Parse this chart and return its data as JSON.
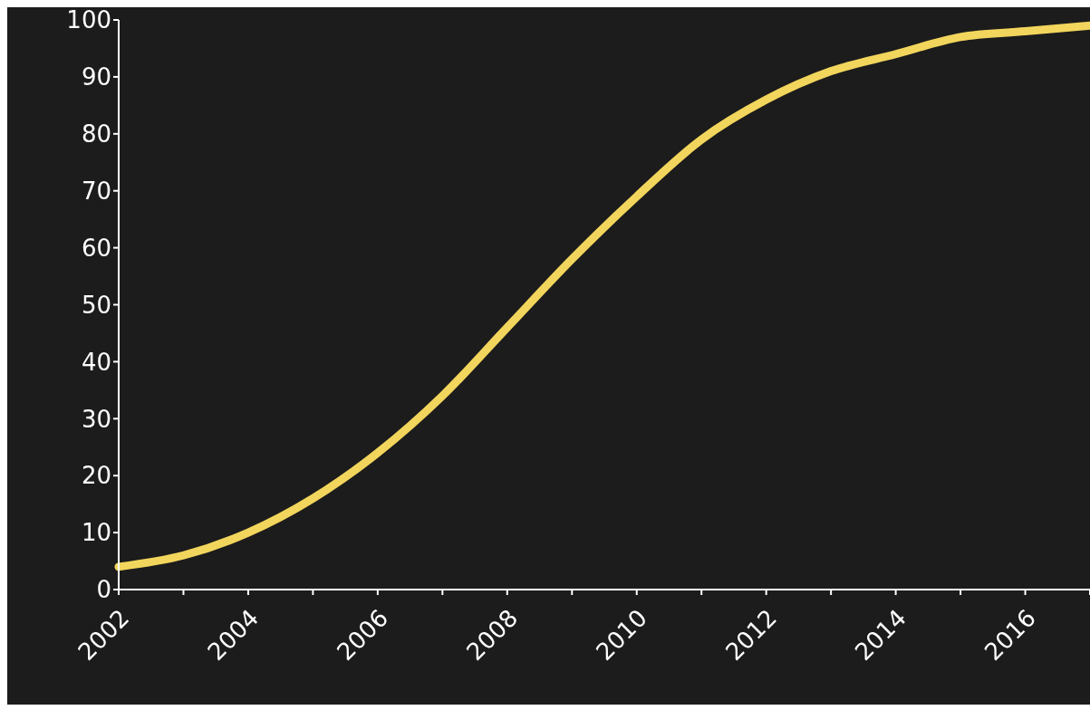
{
  "chart_data": {
    "type": "line",
    "categories": [
      "2002",
      null,
      "2004",
      null,
      "2006",
      null,
      "2008",
      null,
      "2010",
      null,
      "2012",
      null,
      "2014",
      null,
      "2016",
      null
    ],
    "series": [
      {
        "color": "#f2d55c",
        "values": [
          4,
          6,
          10,
          16,
          24,
          34,
          46,
          58,
          69,
          79,
          86,
          91,
          94,
          97,
          98,
          99
        ]
      }
    ],
    "ylim": [
      0,
      100
    ],
    "yticks": [
      0,
      10,
      20,
      30,
      40,
      50,
      60,
      70,
      80,
      90,
      100
    ],
    "grid": false,
    "marker": "none",
    "line_style": "solid"
  }
}
